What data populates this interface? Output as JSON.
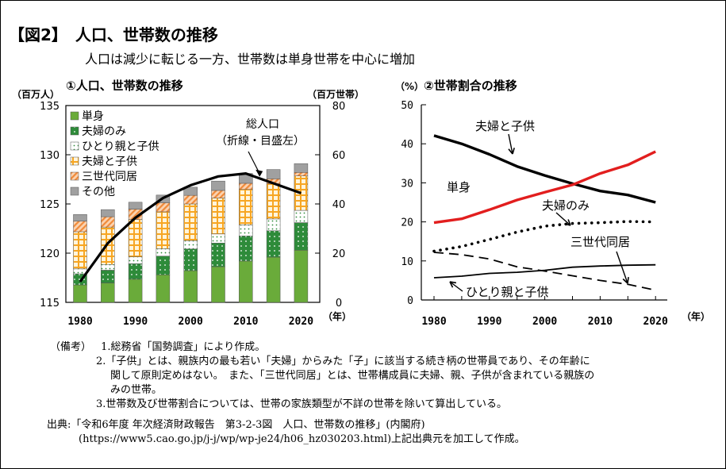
{
  "figure": {
    "title": "【図2】　人口、世帯数の推移",
    "subtitle": "人口は減少に転じる一方、世帯数は単身世帯を中心に増加"
  },
  "colors": {
    "single": "#6aab3a",
    "couple_only": "#2e8b3a",
    "single_parent": "#d9e8c8",
    "couple_children": "#f7a623",
    "three_gen": "#f08a3a",
    "other": "#a0a0a0",
    "line_black": "#000000",
    "line_red": "#e21e1e"
  },
  "chart_data": [
    {
      "type": "bar",
      "subtype": "stacked-bar-with-line",
      "title": "①人口、世帯数の推移",
      "left_axis_unit": "（百万人）",
      "right_axis_unit": "（百万世帯）",
      "x_unit": "（年）",
      "left_ylim": [
        115,
        135
      ],
      "left_ticks": [
        "115",
        "120",
        "125",
        "130",
        "135"
      ],
      "right_ylim": [
        0,
        80
      ],
      "right_ticks": [
        "0",
        "20",
        "40",
        "60",
        "80"
      ],
      "categories": [
        "1980",
        "1985",
        "1990",
        "1995",
        "2000",
        "2005",
        "2010",
        "2015",
        "2020"
      ],
      "x_tick_labels": [
        "1980",
        "1990",
        "2000",
        "2010",
        "2020"
      ],
      "series": [
        {
          "name": "単身",
          "key": "single",
          "values": [
            7.1,
            7.9,
            9.4,
            11.2,
            12.9,
            14.5,
            16.8,
            18.4,
            21.2
          ]
        },
        {
          "name": "夫婦のみ",
          "key": "couple_only",
          "values": [
            4.5,
            5.2,
            6.3,
            7.6,
            8.8,
            9.6,
            10.2,
            10.7,
            11.2
          ]
        },
        {
          "name": "ひとり親と子供",
          "key": "single_parent",
          "values": [
            2.0,
            2.3,
            2.8,
            3.0,
            3.4,
            3.7,
            4.5,
            4.8,
            5.0
          ]
        },
        {
          "name": "夫婦と子供",
          "key": "couple_children",
          "values": [
            15.1,
            15.2,
            15.2,
            15.0,
            14.9,
            14.6,
            14.4,
            14.3,
            14.0
          ]
        },
        {
          "name": "三世代同居",
          "key": "three_gen",
          "values": [
            4.3,
            4.2,
            4.2,
            3.7,
            3.5,
            3.1,
            2.5,
            2.0,
            1.4
          ]
        },
        {
          "name": "その他",
          "key": "other",
          "values": [
            2.7,
            2.9,
            2.8,
            3.1,
            3.3,
            3.8,
            4.0,
            3.8,
            3.6
          ]
        }
      ],
      "line": {
        "name": "総人口",
        "values": [
          117.1,
          121.0,
          123.6,
          125.6,
          126.9,
          127.8,
          128.1,
          127.1,
          126.1
        ]
      },
      "annotation": [
        "総人口",
        "（折線・目盛左）"
      ],
      "legend_position": "top-left"
    },
    {
      "type": "line",
      "title": "②世帯割合の推移",
      "y_unit": "（%）",
      "x_unit": "（年）",
      "ylim": [
        0,
        50
      ],
      "y_ticks": [
        "0",
        "10",
        "20",
        "30",
        "40",
        "50"
      ],
      "x": [
        1980,
        1985,
        1990,
        1995,
        2000,
        2005,
        2010,
        2015,
        2020
      ],
      "x_tick_labels": [
        "1980",
        "1990",
        "2000",
        "2010",
        "2020"
      ],
      "series": [
        {
          "name": "夫婦と子供",
          "style": "solid-thick",
          "color_key": "line_black",
          "values": [
            42.1,
            40.0,
            37.3,
            34.2,
            31.9,
            29.8,
            27.9,
            26.9,
            25.0
          ]
        },
        {
          "name": "単身",
          "style": "solid-thick",
          "color_key": "line_red",
          "values": [
            19.8,
            20.8,
            23.1,
            25.6,
            27.6,
            29.5,
            32.4,
            34.6,
            38.0
          ]
        },
        {
          "name": "夫婦のみ",
          "style": "dotted",
          "color_key": "line_black",
          "values": [
            12.5,
            13.7,
            15.5,
            17.4,
            18.9,
            19.6,
            19.8,
            20.1,
            20.0
          ]
        },
        {
          "name": "三世代同居",
          "style": "dashed",
          "color_key": "line_black",
          "values": [
            12.2,
            11.6,
            10.5,
            8.5,
            7.4,
            6.2,
            5.0,
            4.0,
            2.5
          ]
        },
        {
          "name": "ひとり親と子供",
          "style": "solid-thin",
          "color_key": "line_black",
          "values": [
            5.7,
            6.1,
            6.8,
            7.1,
            7.6,
            8.4,
            8.7,
            8.9,
            9.0
          ]
        }
      ]
    }
  ],
  "notes": {
    "label": "（備考）",
    "items": [
      "1.総務省「国勢調査」により作成。",
      "2.「子供」とは、親族内の最も若い「夫婦」からみた「子」に該当する続き柄の世帯員であり、その年齢に",
      "関して原則定めはない。　また、「三世代同居」とは、世帯構成員に夫婦、親、子供が含まれている親族の",
      "みの世帯。",
      "3.世帯数及び世帯割合については、世帯の家族類型が不詳の世帯を除いて算出している。"
    ],
    "source_line1": "出典:「令和6年度 年次経済財政報告　第3-2-3図　人口、世帯数の推移」(内閣府)",
    "source_line2": "(https://www5.cao.go.jp/j-j/wp/wp-je24/h06_hz030203.html)上記出典元を加工して作成。"
  }
}
